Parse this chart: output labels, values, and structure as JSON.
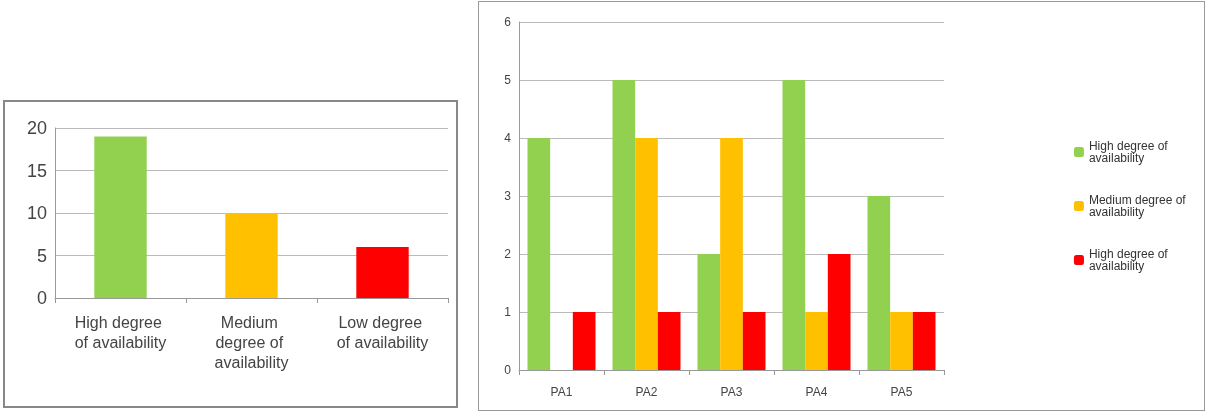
{
  "chart_data": [
    {
      "type": "bar",
      "categories": [
        "High degree of availability",
        "Medium degree of availability",
        "Low degree of availability"
      ],
      "values": [
        19,
        10,
        6
      ],
      "colors": [
        "#92d050",
        "#ffc000",
        "#ff0000"
      ],
      "ylim": [
        0,
        20
      ],
      "yticks": [
        0,
        5,
        10,
        15,
        20
      ],
      "grid": "y",
      "legend": false
    },
    {
      "type": "bar",
      "categories": [
        "PA1",
        "PA2",
        "PA3",
        "PA4",
        "PA5"
      ],
      "series": [
        {
          "name": "High degree of availability",
          "color": "#92d050",
          "values": [
            4,
            5,
            2,
            5,
            3
          ]
        },
        {
          "name": "Medium degree of availability",
          "color": "#ffc000",
          "values": [
            0,
            4,
            4,
            1,
            1
          ]
        },
        {
          "name": "High degree of availability",
          "color": "#ff0000",
          "values": [
            1,
            1,
            1,
            2,
            1
          ]
        }
      ],
      "ylim": [
        0,
        6
      ],
      "yticks": [
        0,
        1,
        2,
        3,
        4,
        5,
        6
      ],
      "grid": "y",
      "legend": "right"
    }
  ]
}
